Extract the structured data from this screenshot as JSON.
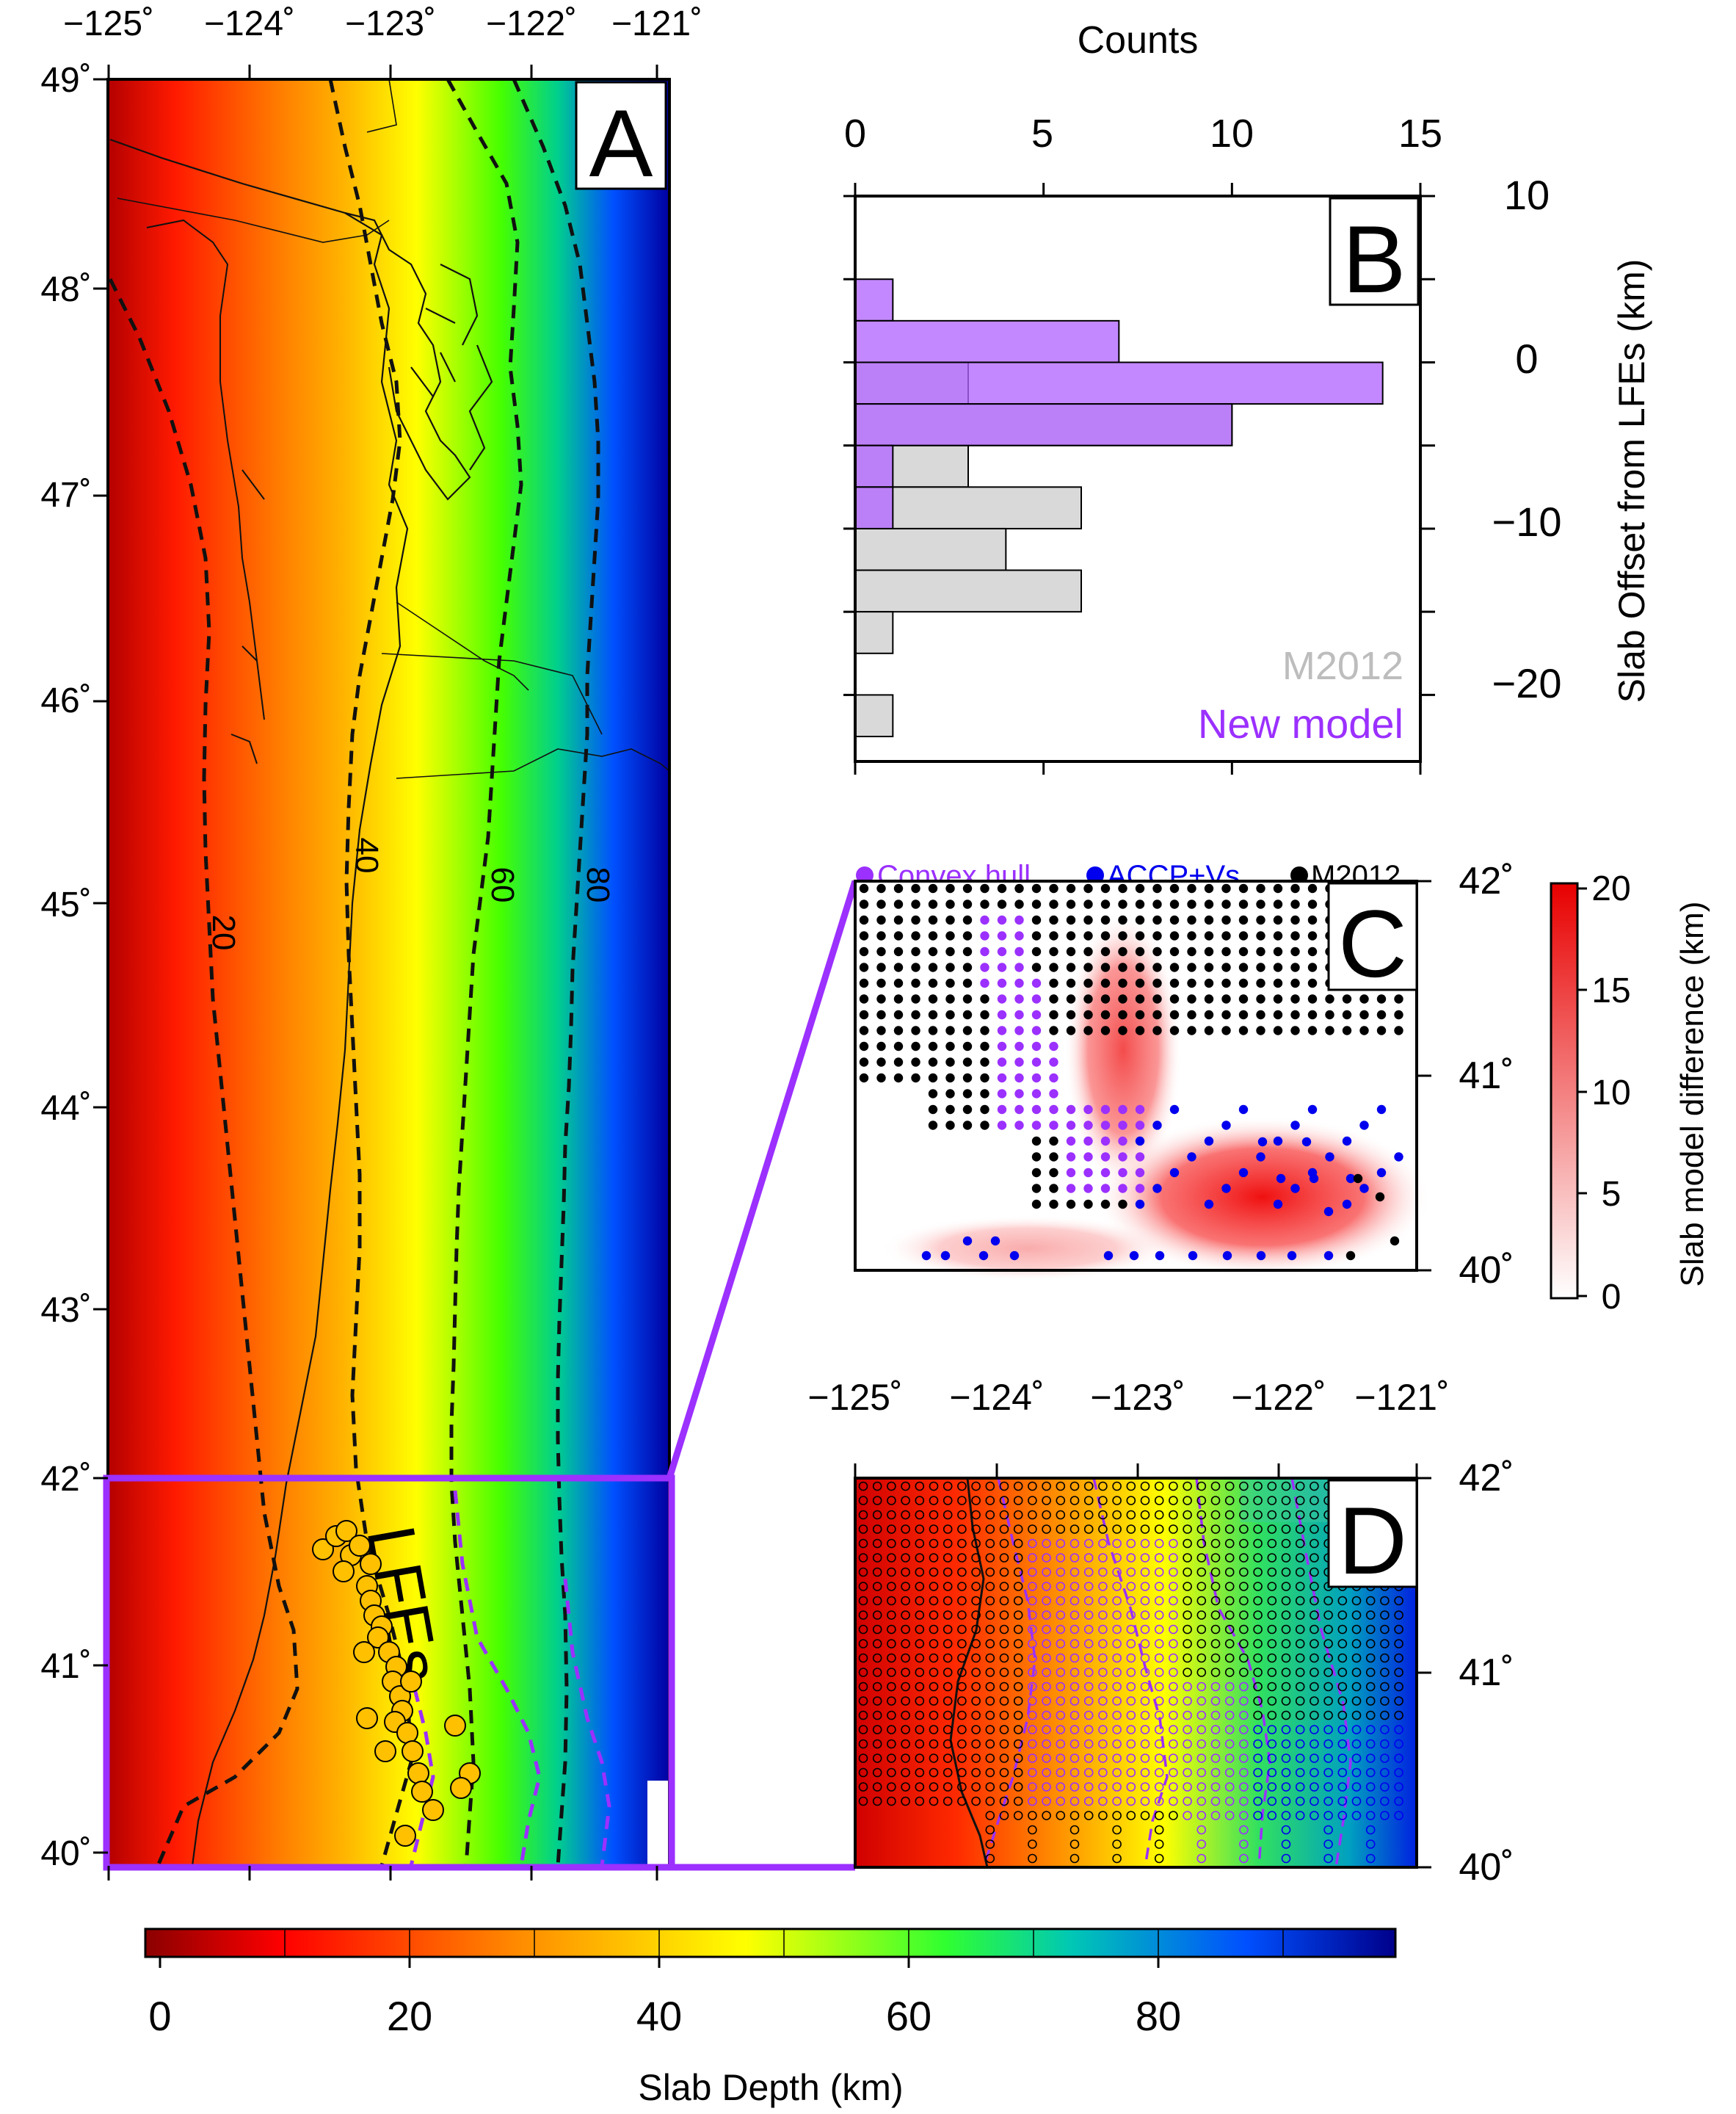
{
  "panel_a": {
    "letter": "A",
    "lon_ticks": [
      "−125˚",
      "−124˚",
      "−123˚",
      "−122˚",
      "−121˚"
    ],
    "lat_ticks": [
      "49˚",
      "48˚",
      "47˚",
      "46˚",
      "45˚",
      "44˚",
      "43˚",
      "42˚",
      "41˚",
      "40˚"
    ],
    "contour_labels": [
      "20",
      "40",
      "60",
      "80"
    ],
    "lfe_label": "LFEs"
  },
  "colorbar": {
    "ticks": [
      "0",
      "20",
      "40",
      "60",
      "80"
    ],
    "title": "Slab Depth (km)",
    "colors": [
      "#8b0000",
      "#ff0000",
      "#ff8c00",
      "#ffff00",
      "#00ff00",
      "#00c8c8",
      "#0000ff",
      "#00008b"
    ]
  },
  "chart_data": {
    "type": "bar",
    "orientation": "horizontal",
    "title": "",
    "xlabel": "Counts",
    "ylabel": "Slab Offset from LFEs (km)",
    "xlim": [
      0,
      15
    ],
    "ylim": [
      -24,
      10
    ],
    "x_ticks": [
      "0",
      "5",
      "10",
      "15"
    ],
    "y_ticks": [
      "10",
      "0",
      "−10",
      "−20"
    ],
    "bin_width": 2.5,
    "bins": [
      5,
      2.5,
      0,
      -2.5,
      -5,
      -7.5,
      -10,
      -12.5,
      -15,
      -17.5,
      -20
    ],
    "series": [
      {
        "name": "M2012",
        "color": "#d9d9d9",
        "values": [
          0,
          0,
          3,
          10,
          3,
          6,
          4,
          6,
          1,
          0,
          1
        ]
      },
      {
        "name": "New model",
        "color": "#b266ff",
        "values": [
          1,
          7,
          14,
          10,
          1,
          1,
          0,
          0,
          0,
          0,
          0
        ]
      }
    ]
  },
  "panel_b": {
    "letter": "B",
    "legend": [
      {
        "label": "M2012",
        "color": "#bdbdbd"
      },
      {
        "label": "New model",
        "color": "#9b30ff"
      }
    ]
  },
  "panel_c": {
    "letter": "C",
    "lat_ticks": [
      "42˚",
      "41˚",
      "40˚"
    ],
    "legend": [
      {
        "label": "Convex hull",
        "color": "#9b30ff"
      },
      {
        "label": "ACCP+Vs",
        "color": "#0000ee"
      },
      {
        "label": "M2012",
        "color": "#000000"
      }
    ],
    "colorbar_ticks": [
      "20",
      "15",
      "10",
      "5",
      "0"
    ],
    "colorbar_title": "Slab model difference (km)"
  },
  "panel_d": {
    "letter": "D",
    "lon_ticks": [
      "−125˚",
      "−124˚",
      "−123˚",
      "−122˚",
      "−121˚"
    ],
    "lat_ticks": [
      "42˚",
      "41˚",
      "40˚"
    ]
  }
}
